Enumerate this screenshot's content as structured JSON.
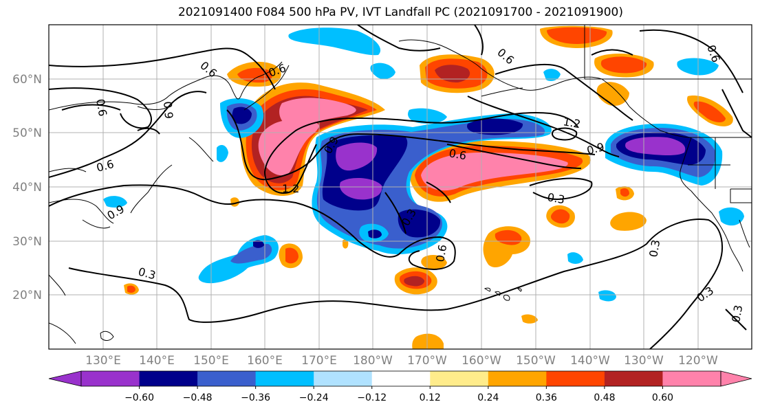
{
  "title": "2021091400 F084 500 hPa PV, IVT Landfall PC (2021091700 - 2021091900)",
  "lon_labels": [
    "130°E",
    "140°E",
    "150°E",
    "160°E",
    "170°E",
    "180°W",
    "170°W",
    "160°W",
    "150°W",
    "140°W",
    "130°W",
    "120°W"
  ],
  "lat_labels": [
    "60°N",
    "50°N",
    "40°N",
    "30°N",
    "20°N"
  ],
  "colorbar": {
    "colors": [
      "#9932CC",
      "#00008B",
      "#3A5FCD",
      "#00BFFF",
      "#B0E2FF",
      "#FFFFFF",
      "#FFEC8B",
      "#FFA500",
      "#FF4500",
      "#B22222",
      "#FF82AB"
    ],
    "tick_labels": [
      "−0.60",
      "−0.48",
      "−0.36",
      "−0.24",
      "−0.12",
      "0.12",
      "0.24",
      "0.36",
      "0.48",
      "0.60"
    ]
  },
  "contour_labels": [
    "0.6",
    "0.6",
    "0.9",
    "0.6",
    "1.2",
    "0.9",
    "0.6",
    "1.2",
    "0.9",
    "0.3",
    "0.3",
    "0.3",
    "0.6",
    "0.6",
    "0.3",
    "0.3",
    "0.6",
    "0.9",
    "0.3",
    "0.6"
  ]
}
